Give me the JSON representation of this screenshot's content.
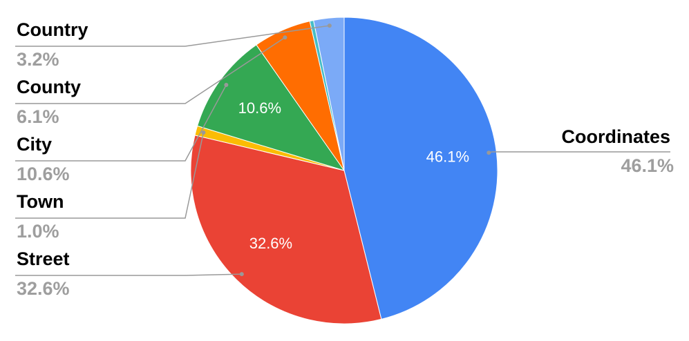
{
  "chart_data": {
    "type": "pie",
    "categories": [
      "Coordinates",
      "Street",
      "Town",
      "City",
      "County",
      null,
      "Country"
    ],
    "values": [
      46.1,
      32.6,
      1.0,
      10.6,
      6.1,
      0.4,
      3.2
    ],
    "value_labels": [
      "46.1%",
      "32.6%",
      "1.0%",
      "10.6%",
      "6.1%",
      null,
      "3.2%"
    ],
    "colors": [
      "#4285f4",
      "#ea4335",
      "#fbbc04",
      "#34a853",
      "#ff6d01",
      "#46bdc6",
      "#7baaf7"
    ]
  }
}
